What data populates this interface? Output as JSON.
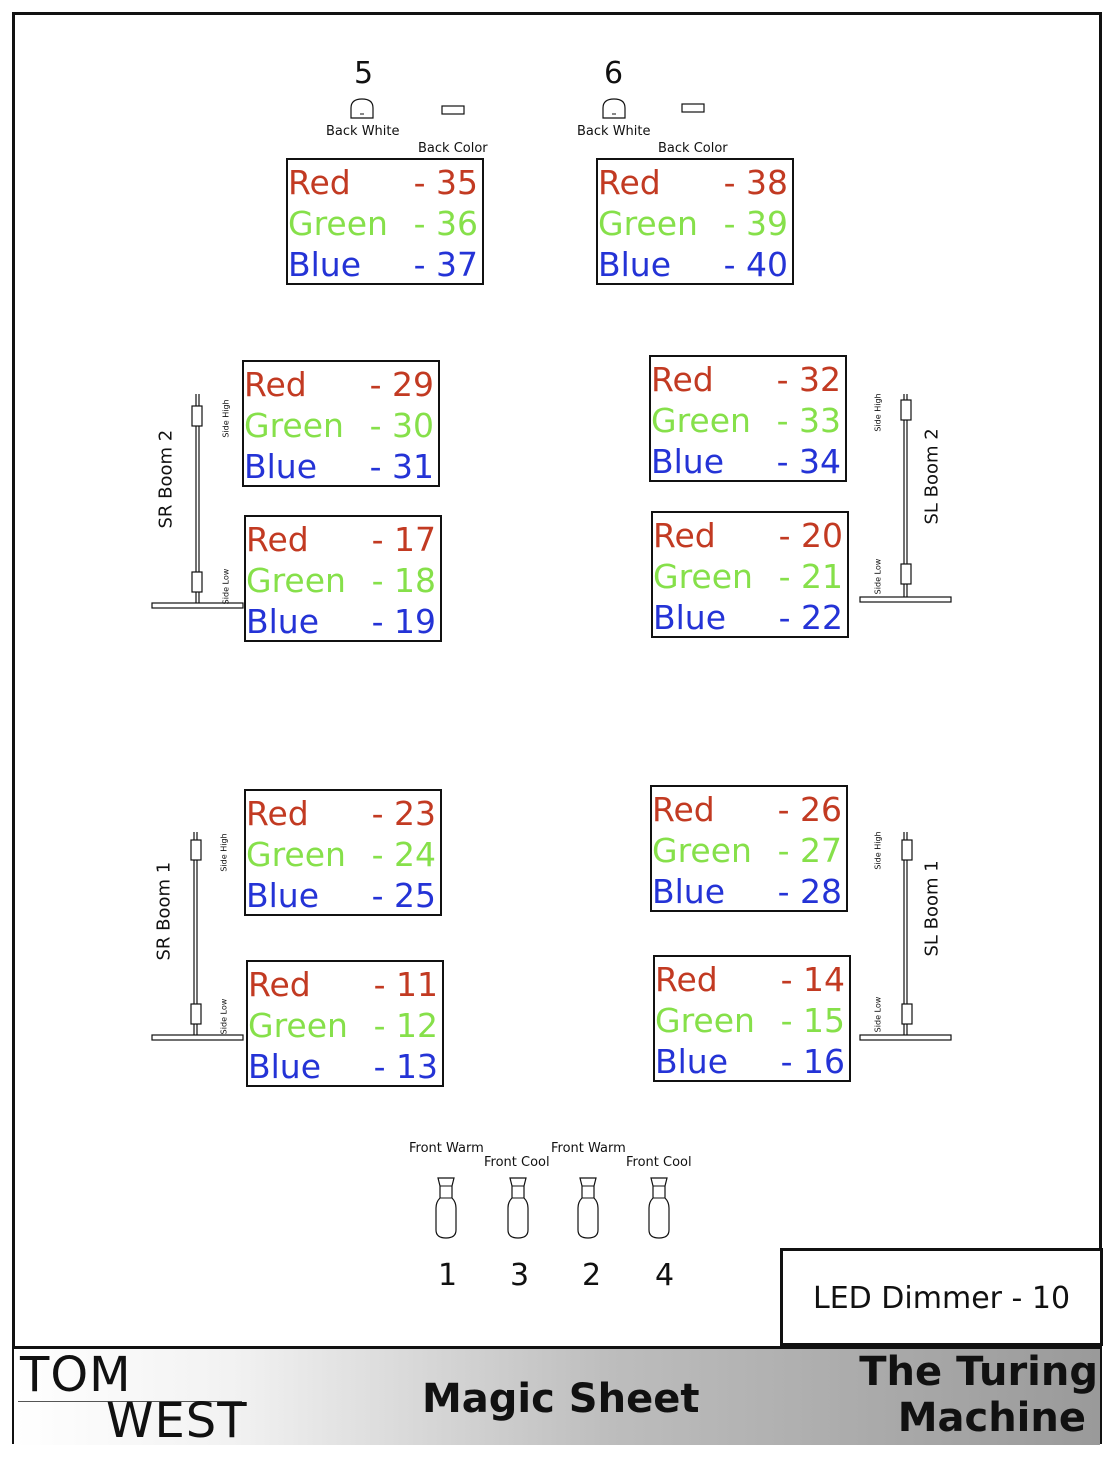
{
  "back": [
    {
      "number": "5",
      "white_label": "Back White",
      "color_label": "Back Color",
      "channels": [
        {
          "color": "Red",
          "value": "- 35"
        },
        {
          "color": "Green",
          "value": "- 36"
        },
        {
          "color": "Blue",
          "value": "- 37"
        }
      ]
    },
    {
      "number": "6",
      "white_label": "Back White",
      "color_label": "Back Color",
      "channels": [
        {
          "color": "Red",
          "value": "- 38"
        },
        {
          "color": "Green",
          "value": "- 39"
        },
        {
          "color": "Blue",
          "value": "- 40"
        }
      ]
    }
  ],
  "booms": {
    "sr_boom_2": {
      "name": "SR Boom 2",
      "high": "Side High",
      "low": "Side Low",
      "high_box": [
        {
          "color": "Red",
          "value": "- 29"
        },
        {
          "color": "Green",
          "value": "- 30"
        },
        {
          "color": "Blue",
          "value": "- 31"
        }
      ],
      "low_box": [
        {
          "color": "Red",
          "value": "- 17"
        },
        {
          "color": "Green",
          "value": "- 18"
        },
        {
          "color": "Blue",
          "value": "- 19"
        }
      ]
    },
    "sl_boom_2": {
      "name": "SL Boom 2",
      "high": "Side High",
      "low": "Side Low",
      "high_box": [
        {
          "color": "Red",
          "value": "- 32"
        },
        {
          "color": "Green",
          "value": "- 33"
        },
        {
          "color": "Blue",
          "value": "- 34"
        }
      ],
      "low_box": [
        {
          "color": "Red",
          "value": "- 20"
        },
        {
          "color": "Green",
          "value": "- 21"
        },
        {
          "color": "Blue",
          "value": "- 22"
        }
      ]
    },
    "sr_boom_1": {
      "name": "SR Boom 1",
      "high": "Side High",
      "low": "Side Low",
      "high_box": [
        {
          "color": "Red",
          "value": "- 23"
        },
        {
          "color": "Green",
          "value": "- 24"
        },
        {
          "color": "Blue",
          "value": "- 25"
        }
      ],
      "low_box": [
        {
          "color": "Red",
          "value": "- 11"
        },
        {
          "color": "Green",
          "value": "- 12"
        },
        {
          "color": "Blue",
          "value": "- 13"
        }
      ]
    },
    "sl_boom_1": {
      "name": "SL Boom 1",
      "high": "Side High",
      "low": "Side Low",
      "high_box": [
        {
          "color": "Red",
          "value": "- 26"
        },
        {
          "color": "Green",
          "value": "- 27"
        },
        {
          "color": "Blue",
          "value": "- 28"
        }
      ],
      "low_box": [
        {
          "color": "Red",
          "value": "- 14"
        },
        {
          "color": "Green",
          "value": "- 15"
        },
        {
          "color": "Blue",
          "value": "- 16"
        }
      ]
    }
  },
  "front": [
    {
      "label": "Front Warm",
      "number": "1"
    },
    {
      "label": "Front Cool",
      "number": "3"
    },
    {
      "label": "Front Warm",
      "number": "2"
    },
    {
      "label": "Front Cool",
      "number": "4"
    }
  ],
  "led_dimmer": "LED Dimmer - 10",
  "footer": {
    "logo_line1": "TOM",
    "logo_line2": "WEST",
    "title": "Magic Sheet",
    "show_line1": "The Turing",
    "show_line2": "Machine"
  },
  "colors": {
    "red": "#c23a22",
    "green": "#86e04a",
    "blue": "#2433d6"
  }
}
